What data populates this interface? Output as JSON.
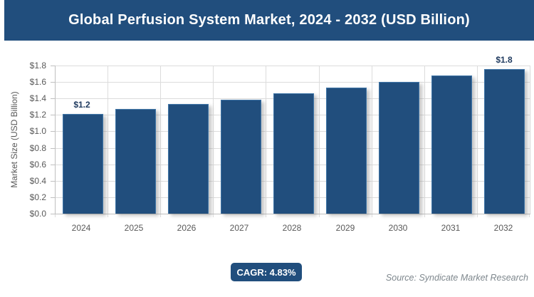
{
  "header": {
    "title": "Global Perfusion System Market, 2024 - 2032 (USD Billion)"
  },
  "chart_data": {
    "type": "bar",
    "title": "Global Perfusion System Market, 2024 - 2032 (USD Billion)",
    "xlabel": "",
    "ylabel": "Market Size (USD Billion)",
    "categories": [
      "2024",
      "2025",
      "2026",
      "2027",
      "2028",
      "2029",
      "2030",
      "2031",
      "2032"
    ],
    "values": [
      1.2,
      1.26,
      1.32,
      1.38,
      1.45,
      1.52,
      1.59,
      1.67,
      1.75
    ],
    "point_labels": [
      "$1.2",
      "",
      "",
      "",
      "",
      "",
      "",
      "",
      "$1.8"
    ],
    "y_ticks": [
      "$0.0",
      "$0.2",
      "$0.4",
      "$0.6",
      "$0.8",
      "$1.0",
      "$1.2",
      "$1.4",
      "$1.6",
      "$1.8"
    ],
    "ylim": [
      0,
      1.8
    ],
    "grid": true,
    "legend": "none"
  },
  "footer": {
    "cagr_badge": "CAGR: 4.83%",
    "source": "Source: Syndicate Market Research"
  },
  "theme": {
    "brand_blue": "#214E7D",
    "bar_border": "#4076A8",
    "data_label": "#1F3A5F",
    "tick_label": "#595959",
    "gridline": "#DCDCDC",
    "axis_line": "#C0C0C0",
    "source_text": "#7E878D",
    "title_text": "#FFFFFF"
  }
}
